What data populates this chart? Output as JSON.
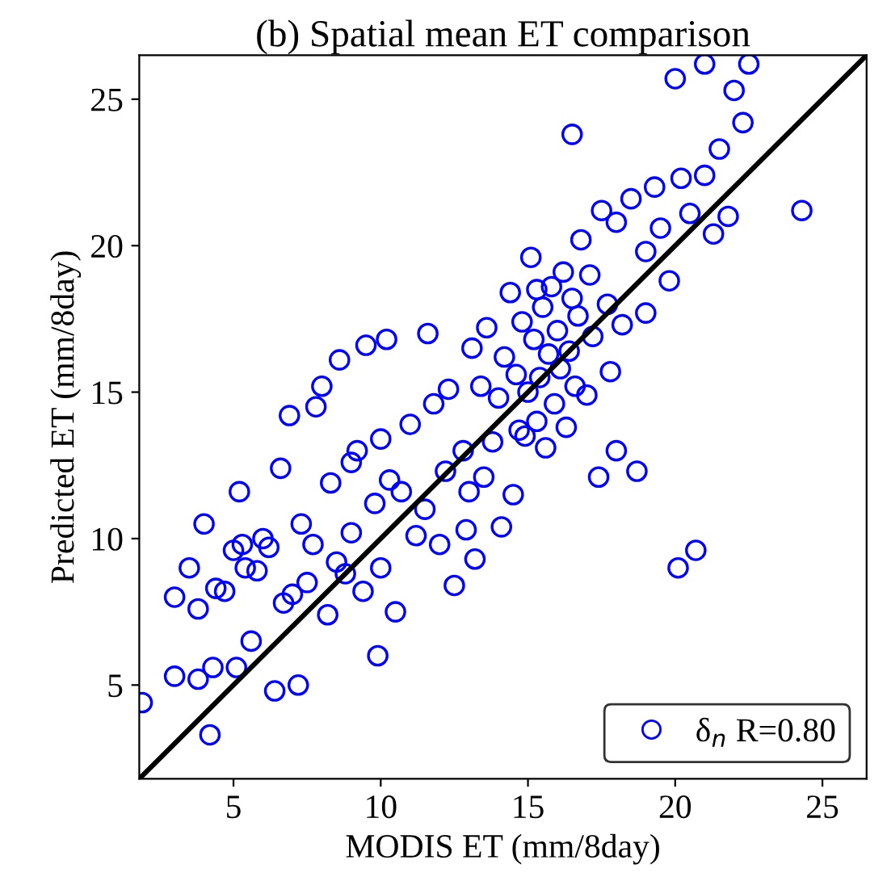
{
  "chart_data": {
    "type": "scatter",
    "title": "(b) Spatial mean ET comparison",
    "xlabel": "MODIS ET (mm/8day)",
    "ylabel": "Predicted ET (mm/8day)",
    "xlim": [
      1.8,
      26.5
    ],
    "ylim": [
      1.8,
      26.5
    ],
    "xticks": [
      5,
      10,
      15,
      20,
      25
    ],
    "yticks": [
      5,
      10,
      15,
      20,
      25
    ],
    "grid": false,
    "legend": "bottom right",
    "series": [
      {
        "name": "δ$_{n}$ R=0.80",
        "color": "#0000ff",
        "marker": "circle",
        "x": [
          1.9,
          3.0,
          3.0,
          3.5,
          3.8,
          3.8,
          4.0,
          4.2,
          4.3,
          4.4,
          4.7,
          5.0,
          5.1,
          5.2,
          5.3,
          5.4,
          5.6,
          5.8,
          6.0,
          6.2,
          6.4,
          6.6,
          6.7,
          6.9,
          7.0,
          7.2,
          7.3,
          7.5,
          7.7,
          7.8,
          8.0,
          8.2,
          8.3,
          8.5,
          8.6,
          8.8,
          9.0,
          9.0,
          9.2,
          9.4,
          9.5,
          9.8,
          10.0,
          10.0,
          10.2,
          10.3,
          10.5,
          10.7,
          11.0,
          11.2,
          11.5,
          11.6,
          11.8,
          12.0,
          12.2,
          12.3,
          12.5,
          12.8,
          13.0,
          13.1,
          13.2,
          13.4,
          13.5,
          13.6,
          13.8,
          14.0,
          14.1,
          14.2,
          14.4,
          14.5,
          14.6,
          14.7,
          14.8,
          15.0,
          15.1,
          15.2,
          15.3,
          15.4,
          15.5,
          15.6,
          15.7,
          15.8,
          15.9,
          16.0,
          16.1,
          16.2,
          16.3,
          16.4,
          16.5,
          16.6,
          16.7,
          16.8,
          17.0,
          17.1,
          17.2,
          17.4,
          17.5,
          17.7,
          17.8,
          18.0,
          18.0,
          18.2,
          18.5,
          18.7,
          19.0,
          19.0,
          19.3,
          19.5,
          19.8,
          20.0,
          20.1,
          20.2,
          20.5,
          20.7,
          21.0,
          21.0,
          21.3,
          21.5,
          21.8,
          22.0,
          22.3,
          22.5,
          24.3,
          16.5,
          15.3,
          14.9,
          12.9,
          9.9
        ],
        "values": [
          4.4,
          5.3,
          8.0,
          9.0,
          7.6,
          5.2,
          10.5,
          3.3,
          5.6,
          8.3,
          8.2,
          9.6,
          5.6,
          11.6,
          9.8,
          9.0,
          6.5,
          8.9,
          10.0,
          9.7,
          4.8,
          12.4,
          7.8,
          14.2,
          8.1,
          5.0,
          10.5,
          8.5,
          9.8,
          14.5,
          15.2,
          7.4,
          11.9,
          9.2,
          16.1,
          8.8,
          12.6,
          10.2,
          13.0,
          8.2,
          16.6,
          11.2,
          13.4,
          9.0,
          16.8,
          12.0,
          7.5,
          11.6,
          13.9,
          10.1,
          11.0,
          17.0,
          14.6,
          9.8,
          12.3,
          15.1,
          8.4,
          13.0,
          11.6,
          16.5,
          9.3,
          15.2,
          12.1,
          17.2,
          13.3,
          14.8,
          10.4,
          16.2,
          18.4,
          11.5,
          15.6,
          13.7,
          17.4,
          15.0,
          19.6,
          16.8,
          14.0,
          15.5,
          17.9,
          13.1,
          16.3,
          18.6,
          14.6,
          17.1,
          15.8,
          19.1,
          13.8,
          16.4,
          18.2,
          15.2,
          17.6,
          20.2,
          14.9,
          19.0,
          16.9,
          12.1,
          21.2,
          18.0,
          15.7,
          20.8,
          13.0,
          17.3,
          21.6,
          12.3,
          19.8,
          17.7,
          22.0,
          20.6,
          18.8,
          25.7,
          9.0,
          22.3,
          21.1,
          9.6,
          26.2,
          22.4,
          20.4,
          23.3,
          21.0,
          25.3,
          24.2,
          26.2,
          21.2,
          23.8,
          18.5,
          13.5,
          10.3,
          6.0
        ]
      },
      {
        "type": "line",
        "color": "#000000",
        "marker": "none",
        "x": [
          1.8,
          26.5
        ],
        "values": [
          1.8,
          26.5
        ]
      }
    ]
  }
}
